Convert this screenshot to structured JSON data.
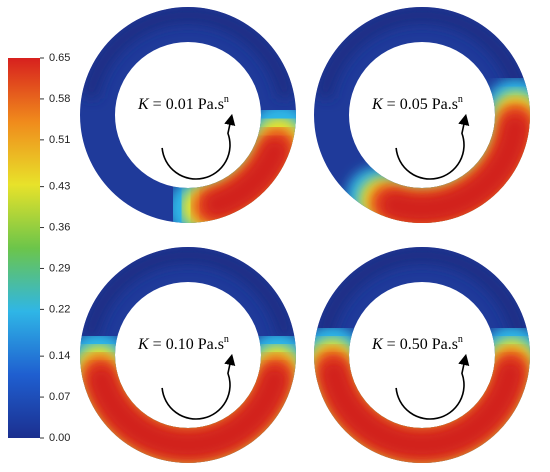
{
  "colorbar": {
    "ticks": [
      {
        "value": 0.65,
        "label": "0.65"
      },
      {
        "value": 0.58,
        "label": "0.58"
      },
      {
        "value": 0.51,
        "label": "0.51"
      },
      {
        "value": 0.43,
        "label": "0.43"
      },
      {
        "value": 0.36,
        "label": "0.36"
      },
      {
        "value": 0.29,
        "label": "0.29"
      },
      {
        "value": 0.22,
        "label": "0.22"
      },
      {
        "value": 0.14,
        "label": "0.14"
      },
      {
        "value": 0.07,
        "label": "0.07"
      },
      {
        "value": 0,
        "label": "0.00"
      }
    ],
    "range": [
      0,
      0.65
    ],
    "colors": [
      "#1b2f8f",
      "#1f5fd0",
      "#2fb6e6",
      "#6cc54a",
      "#e8e22a",
      "#f08a1c",
      "#d7201e"
    ]
  },
  "panels": [
    {
      "variable": "K",
      "text": " = 0.01 Pa.s",
      "sup": "n"
    },
    {
      "variable": "K",
      "text": " = 0.05 Pa.s",
      "sup": "n"
    },
    {
      "variable": "K",
      "text": " = 0.10 Pa.s",
      "sup": "n"
    },
    {
      "variable": "K",
      "text": " = 0.50 Pa.s",
      "sup": "n"
    }
  ]
}
